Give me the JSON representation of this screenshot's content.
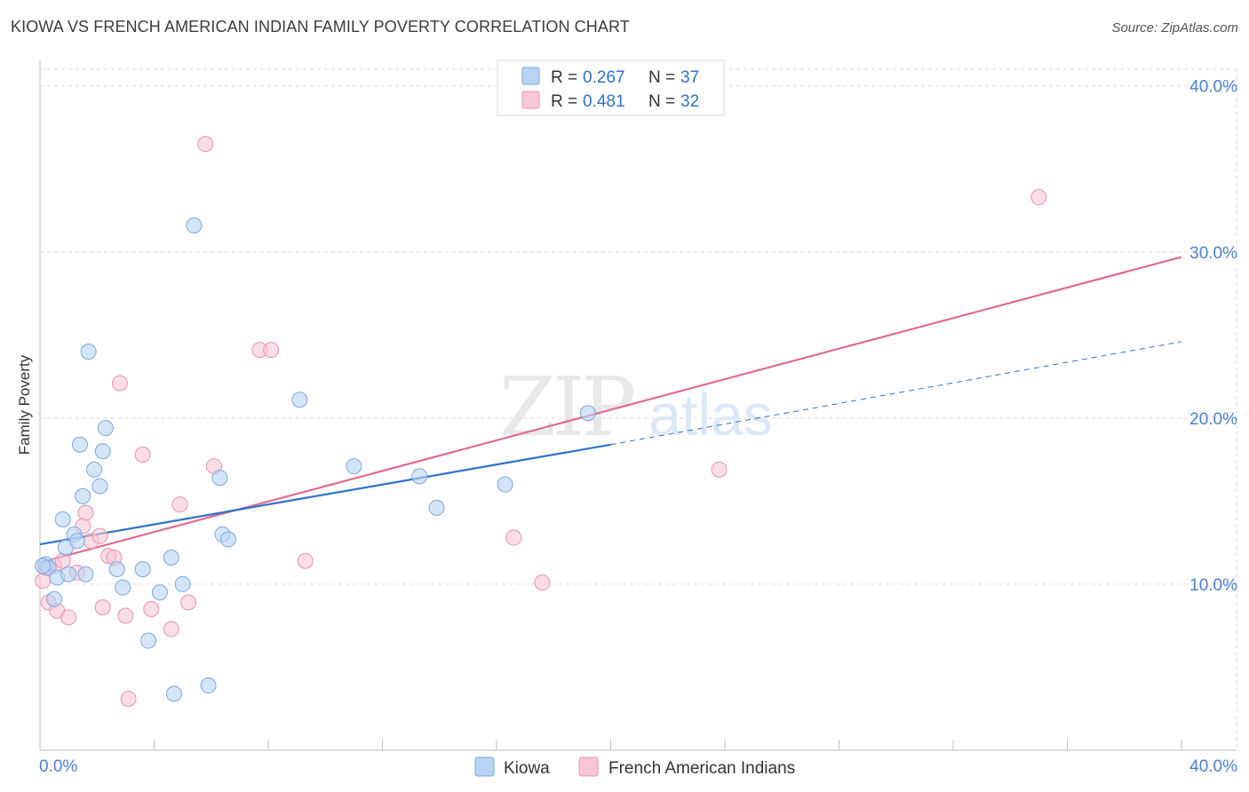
{
  "title": "KIOWA VS FRENCH AMERICAN INDIAN FAMILY POVERTY CORRELATION CHART",
  "source": "Source: ZipAtlas.com",
  "watermark": {
    "zip": "ZIP",
    "atlas": "atlas"
  },
  "colors": {
    "kiowa_fill": "#b9d3f3",
    "kiowa_stroke": "#7aa8e0",
    "kiowa_line": "#2f72c9",
    "french_fill": "#f8c6d5",
    "french_stroke": "#ea94b0",
    "french_line": "#e06a93",
    "tick_label": "#4a7fd0",
    "grid": "#d9d9d9"
  },
  "legend_top": [
    {
      "r_label": "R =",
      "r_value": "0.267",
      "n_label": "N =",
      "n_value": "37"
    },
    {
      "r_label": "R =",
      "r_value": "0.481",
      "n_label": "N =",
      "n_value": "32"
    }
  ],
  "chart_data": {
    "type": "scatter",
    "title": "KIOWA VS FRENCH AMERICAN INDIAN FAMILY POVERTY CORRELATION CHART",
    "xlabel": "",
    "ylabel": "Family Poverty",
    "xlim": [
      0,
      40
    ],
    "ylim": [
      0,
      41
    ],
    "x_tick_labels": [
      "0.0%",
      "40.0%"
    ],
    "y_ticks": [
      10,
      20,
      30,
      40
    ],
    "y_tick_labels": [
      "10.0%",
      "20.0%",
      "30.0%",
      "40.0%"
    ],
    "grid": true,
    "legend_position": "bottom",
    "series": [
      {
        "name": "Kiowa",
        "points": [
          [
            0.2,
            11.2
          ],
          [
            0.3,
            11.0
          ],
          [
            0.5,
            9.1
          ],
          [
            0.6,
            10.4
          ],
          [
            0.8,
            13.9
          ],
          [
            0.9,
            12.2
          ],
          [
            1.0,
            10.6
          ],
          [
            1.2,
            13.0
          ],
          [
            1.3,
            12.6
          ],
          [
            1.4,
            18.4
          ],
          [
            1.5,
            15.3
          ],
          [
            1.6,
            10.6
          ],
          [
            1.7,
            24.0
          ],
          [
            1.9,
            16.9
          ],
          [
            2.1,
            15.9
          ],
          [
            2.2,
            18.0
          ],
          [
            2.3,
            19.4
          ],
          [
            2.7,
            10.9
          ],
          [
            2.9,
            9.8
          ],
          [
            3.6,
            10.9
          ],
          [
            3.8,
            6.6
          ],
          [
            4.2,
            9.5
          ],
          [
            4.6,
            11.6
          ],
          [
            4.7,
            3.4
          ],
          [
            5.0,
            10.0
          ],
          [
            5.4,
            31.6
          ],
          [
            5.9,
            3.9
          ],
          [
            6.3,
            16.4
          ],
          [
            6.4,
            13.0
          ],
          [
            6.6,
            12.7
          ],
          [
            9.1,
            21.1
          ],
          [
            11.0,
            17.1
          ],
          [
            13.3,
            16.5
          ],
          [
            13.9,
            14.6
          ],
          [
            16.3,
            16.0
          ],
          [
            19.2,
            20.3
          ],
          [
            0.1,
            11.1
          ]
        ],
        "trend": {
          "x0": 0.0,
          "y0": 12.4,
          "x1": 20.0,
          "y1": 18.4
        },
        "trend_extension": {
          "x0": 20.0,
          "y0": 18.4,
          "x1": 40.0,
          "y1": 24.6
        }
      },
      {
        "name": "French American Indians",
        "points": [
          [
            0.1,
            10.2
          ],
          [
            0.3,
            8.9
          ],
          [
            0.5,
            11.1
          ],
          [
            0.6,
            8.4
          ],
          [
            0.8,
            11.4
          ],
          [
            1.0,
            8.0
          ],
          [
            1.3,
            10.7
          ],
          [
            1.5,
            13.5
          ],
          [
            1.6,
            14.3
          ],
          [
            1.8,
            12.6
          ],
          [
            2.1,
            12.9
          ],
          [
            2.2,
            8.6
          ],
          [
            2.4,
            11.7
          ],
          [
            2.6,
            11.6
          ],
          [
            2.8,
            22.1
          ],
          [
            3.0,
            8.1
          ],
          [
            3.1,
            3.1
          ],
          [
            3.6,
            17.8
          ],
          [
            3.9,
            8.5
          ],
          [
            4.6,
            7.3
          ],
          [
            4.9,
            14.8
          ],
          [
            5.2,
            8.9
          ],
          [
            5.8,
            36.5
          ],
          [
            6.1,
            17.1
          ],
          [
            7.7,
            24.1
          ],
          [
            8.1,
            24.1
          ],
          [
            9.3,
            11.4
          ],
          [
            16.6,
            12.8
          ],
          [
            17.6,
            10.1
          ],
          [
            23.8,
            16.9
          ],
          [
            35.0,
            33.3
          ],
          [
            0.2,
            11.0
          ]
        ],
        "trend": {
          "x0": 0.0,
          "y0": 11.3,
          "x1": 40.0,
          "y1": 29.7
        }
      }
    ]
  }
}
